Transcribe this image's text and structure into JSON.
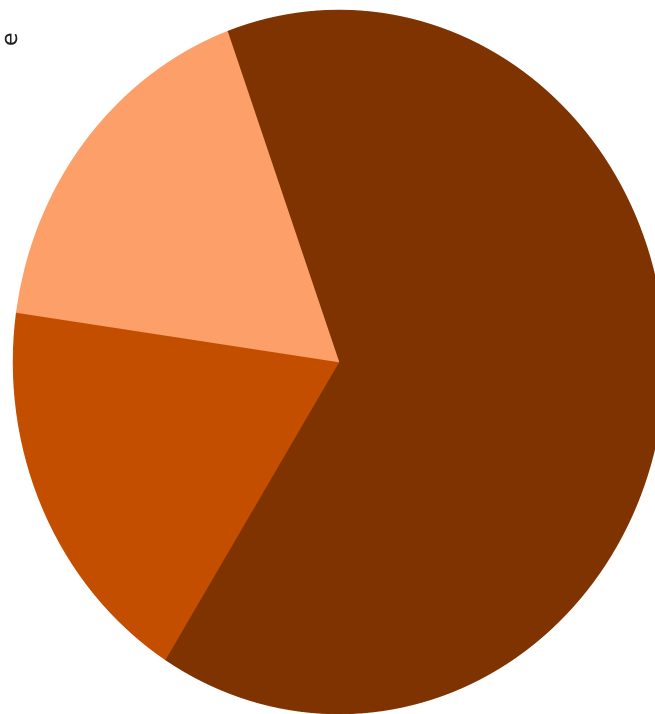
{
  "chart_data": {
    "type": "pie",
    "title": "",
    "side_label": "e",
    "slices": [
      {
        "value": 64.5,
        "color": "#7f3300"
      },
      {
        "value": 18.3,
        "color": "#c44e00"
      },
      {
        "value": 17.2,
        "color": "#fd9f69"
      }
    ],
    "legend": "none"
  }
}
